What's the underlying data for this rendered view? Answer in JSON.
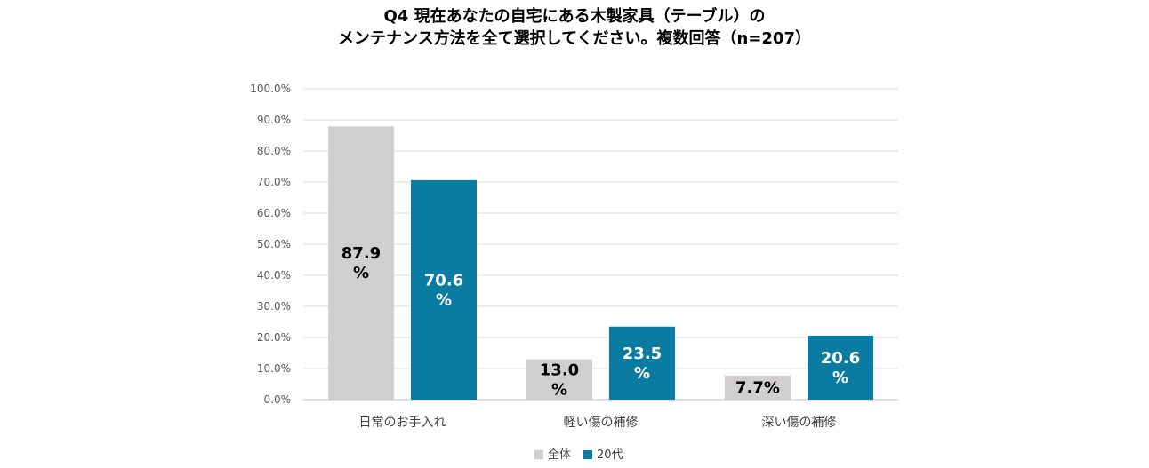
{
  "chart_data": {
    "type": "bar",
    "title_lines": [
      "Q4 現在あなたの自宅にある木製家具（テーブル）の",
      "メンテナンス方法を全て選択してください。複数回答（n=207）"
    ],
    "categories": [
      "日常のお手入れ",
      "軽い傷の補修",
      "深い傷の補修"
    ],
    "series": [
      {
        "name": "全体",
        "color": "#d0cece",
        "label_color": "#000000",
        "values": [
          87.9,
          13.0,
          7.7
        ],
        "labels": [
          [
            "87.9",
            "%"
          ],
          [
            "13.0",
            "%"
          ],
          [
            "7.7%"
          ]
        ]
      },
      {
        "name": "20代",
        "color": "#0a7ca1",
        "label_color": "#ffffff",
        "values": [
          70.6,
          23.5,
          20.6
        ],
        "labels": [
          [
            "70.6",
            "%"
          ],
          [
            "23.5",
            "%"
          ],
          [
            "20.6",
            "%"
          ]
        ]
      }
    ],
    "yticks": [
      "0.0%",
      "10.0%",
      "20.0%",
      "30.0%",
      "40.0%",
      "50.0%",
      "60.0%",
      "70.0%",
      "80.0%",
      "90.0%",
      "100.0%"
    ],
    "ylim": [
      0,
      100
    ],
    "grid": true,
    "legend_position": "bottom"
  }
}
